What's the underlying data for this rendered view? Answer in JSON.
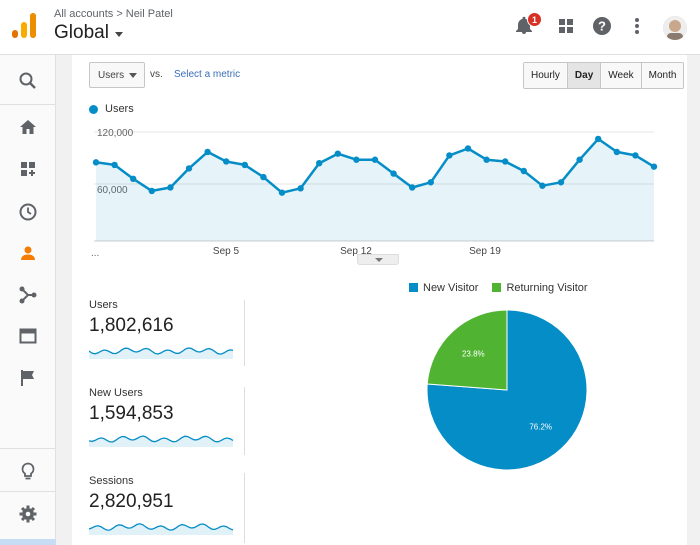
{
  "header": {
    "breadcrumb_root": "All accounts",
    "breadcrumb_sep": ">",
    "breadcrumb_account": "Neil Patel",
    "view_name": "Global",
    "notification_count": "1",
    "icons": [
      "analytics-logo-icon",
      "bell-icon",
      "apps-grid-icon",
      "help-icon",
      "more-vert-icon",
      "avatar"
    ]
  },
  "sidebar": {
    "items": [
      "search-icon",
      "home-icon",
      "customization-icon",
      "realtime-clock-icon",
      "audience-person-icon",
      "acquisition-icon",
      "behavior-icon",
      "conversions-flag-icon",
      "discover-bulb-icon",
      "admin-gear-icon"
    ],
    "active": "audience-person-icon"
  },
  "controls": {
    "metric": "Users",
    "vs": "vs.",
    "select_metric": "Select a metric",
    "periods": [
      "Hourly",
      "Day",
      "Week",
      "Month"
    ],
    "active_period": "Day"
  },
  "line_chart": {
    "series_name": "Users",
    "y_tick_top": "120,000",
    "y_tick_mid": "60,000",
    "x_start": "...",
    "x_ticks": [
      "Sep 5",
      "Sep 12",
      "Sep 19"
    ],
    "color": "#058dc7"
  },
  "chart_data": [
    {
      "type": "area",
      "title": "",
      "series": [
        {
          "name": "Users",
          "values": [
            85000,
            82000,
            66000,
            52000,
            56000,
            78000,
            97000,
            86000,
            82000,
            68000,
            50000,
            55000,
            84000,
            95000,
            88000,
            88000,
            72000,
            56000,
            62000,
            93000,
            101000,
            88000,
            86000,
            75000,
            58000,
            62000,
            88000,
            112000,
            97000,
            93000,
            80000
          ]
        }
      ],
      "x_tick_labels": [
        "Sep 5",
        "Sep 12",
        "Sep 19"
      ],
      "y_ticks": [
        60000,
        120000
      ],
      "ylim": [
        0,
        130000
      ],
      "grid": true,
      "legend": "top-left"
    },
    {
      "type": "pie",
      "categories": [
        "New Visitor",
        "Returning Visitor"
      ],
      "values": [
        76.2,
        23.8
      ],
      "labels": [
        "76.2%",
        "23.8%"
      ],
      "colors": [
        "#058dc7",
        "#50b432"
      ],
      "legend": "top"
    }
  ],
  "stats": [
    {
      "label": "Users",
      "value": "1,802,616"
    },
    {
      "label": "New Users",
      "value": "1,594,853"
    },
    {
      "label": "Sessions",
      "value": "2,820,951"
    }
  ],
  "colors": {
    "accent": "#058dc7",
    "returning": "#50b432",
    "orange": "#f57c00"
  }
}
